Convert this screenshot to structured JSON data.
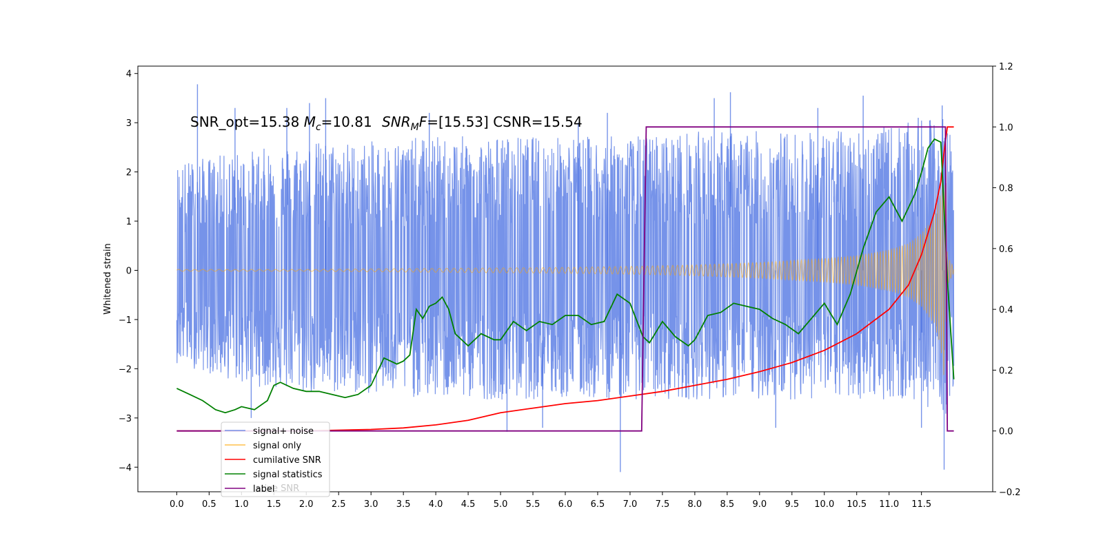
{
  "chart_data": {
    "type": "line",
    "annotation": {
      "snr_opt": "SNR_opt=15.38",
      "mc_symbol": "M",
      "mc_subscript": "c",
      "mc_value": "=10.81",
      "snrmf_symbol": "SNR",
      "snrmf_subscript": "M",
      "snrmf_tail": "F",
      "snrmf_value": "=[15.53]",
      "csnr": "CSNR=15.54"
    },
    "ylabel_left": "Whitened strain",
    "xlabel": "",
    "x_range": [
      -0.6,
      12.6
    ],
    "x_ticks": [
      0.0,
      0.5,
      1.0,
      1.5,
      2.0,
      2.5,
      3.0,
      3.5,
      4.0,
      4.5,
      5.0,
      5.5,
      6.0,
      6.5,
      7.0,
      7.5,
      8.0,
      8.5,
      9.0,
      9.5,
      10.0,
      10.5,
      11.0,
      11.5
    ],
    "x_tick_labels": [
      "0.0",
      "0.5",
      "1.0",
      "1.5",
      "2.0",
      "2.5",
      "3.0",
      "3.5",
      "4.0",
      "4.5",
      "5.0",
      "5.5",
      "6.0",
      "6.5",
      "7.0",
      "7.5",
      "8.0",
      "8.5",
      "9.0",
      "9.5",
      "10.0",
      "10.5",
      "11.0",
      "11.5"
    ],
    "y_left_range": [
      -4.5,
      4.15
    ],
    "y_left_ticks": [
      -4,
      -3,
      -2,
      -1,
      0,
      1,
      2,
      3,
      4
    ],
    "y_left_tick_labels": [
      "−4",
      "−3",
      "−2",
      "−1",
      "0",
      "1",
      "2",
      "3",
      "4"
    ],
    "y_right_range": [
      -0.2,
      1.2
    ],
    "y_right_ticks": [
      -0.2,
      0.0,
      0.2,
      0.4,
      0.6,
      0.8,
      1.0,
      1.2
    ],
    "y_right_tick_labels": [
      "−0.2",
      "0.0",
      "0.2",
      "0.4",
      "0.6",
      "0.8",
      "1.0",
      "1.2"
    ],
    "legend_placement": "lower-left",
    "legend": [
      {
        "label": "signal+ noise",
        "color": "#4169e1"
      },
      {
        "label": "signal only",
        "color": "#ffa500"
      },
      {
        "label": "cumilative SNR",
        "color": "#ff0000"
      },
      {
        "label": "signal statistics",
        "color": "#008000"
      },
      {
        "label": "label",
        "color": "#800080"
      }
    ],
    "legend_ghost_text": "lative SNR",
    "series": [
      {
        "name": "signal+ noise",
        "axis": "left",
        "color": "#4169e1",
        "noise_envelope": {
          "x": [
            0.0,
            1.0,
            2.0,
            3.0,
            4.0,
            5.0,
            6.0,
            7.0,
            8.0,
            9.0,
            10.0,
            11.0,
            11.5,
            11.9,
            12.0
          ],
          "upper": [
            2.1,
            2.3,
            2.5,
            2.5,
            2.6,
            2.6,
            2.6,
            2.6,
            2.7,
            2.7,
            2.7,
            2.8,
            2.9,
            3.0,
            2.3
          ],
          "lower": [
            -1.8,
            -2.2,
            -2.4,
            -2.4,
            -2.5,
            -2.5,
            -2.5,
            -2.5,
            -2.5,
            -2.5,
            -2.5,
            -2.5,
            -2.6,
            -2.8,
            -2.3
          ]
        },
        "spikes": [
          {
            "x": 0.32,
            "y": 3.78
          },
          {
            "x": 0.9,
            "y": 3.3
          },
          {
            "x": 1.7,
            "y": 3.3
          },
          {
            "x": 2.05,
            "y": 3.4
          },
          {
            "x": 2.3,
            "y": 3.5
          },
          {
            "x": 3.9,
            "y": 3.2
          },
          {
            "x": 6.2,
            "y": 3.0
          },
          {
            "x": 6.65,
            "y": 3.2
          },
          {
            "x": 8.3,
            "y": 3.5
          },
          {
            "x": 8.55,
            "y": 3.62
          },
          {
            "x": 9.9,
            "y": 3.3
          },
          {
            "x": 10.6,
            "y": 3.55
          },
          {
            "x": 11.45,
            "y": 3.1
          },
          {
            "x": 11.82,
            "y": 3.35
          },
          {
            "x": 1.15,
            "y": -3.0
          },
          {
            "x": 5.1,
            "y": -3.28
          },
          {
            "x": 5.65,
            "y": -3.2
          },
          {
            "x": 6.85,
            "y": -4.1
          },
          {
            "x": 9.25,
            "y": -3.2
          },
          {
            "x": 11.5,
            "y": -3.2
          },
          {
            "x": 11.85,
            "y": -4.05
          }
        ]
      },
      {
        "name": "signal only",
        "axis": "left",
        "color": "#ffa500",
        "envelope": {
          "x": [
            0.0,
            2.0,
            4.0,
            6.0,
            7.0,
            8.0,
            9.0,
            10.0,
            10.5,
            11.0,
            11.3,
            11.5,
            11.7,
            11.8,
            11.85,
            11.9,
            12.0
          ],
          "amp": [
            0.02,
            0.02,
            0.04,
            0.06,
            0.08,
            0.11,
            0.16,
            0.24,
            0.3,
            0.42,
            0.55,
            0.75,
            1.1,
            1.6,
            2.2,
            0.3,
            0.05
          ]
        }
      },
      {
        "name": "cumilative SNR",
        "axis": "right",
        "color": "#ff0000",
        "x": [
          0.0,
          2.0,
          3.0,
          3.5,
          4.0,
          4.5,
          5.0,
          5.5,
          6.0,
          6.5,
          7.0,
          7.5,
          8.0,
          8.5,
          9.0,
          9.5,
          10.0,
          10.5,
          11.0,
          11.3,
          11.5,
          11.7,
          11.8,
          11.85,
          11.9,
          12.0
        ],
        "y": [
          0.0,
          0.0,
          0.005,
          0.01,
          0.02,
          0.035,
          0.06,
          0.075,
          0.09,
          0.1,
          0.115,
          0.13,
          0.15,
          0.17,
          0.195,
          0.225,
          0.265,
          0.32,
          0.4,
          0.48,
          0.58,
          0.72,
          0.82,
          0.92,
          1.0,
          1.0
        ]
      },
      {
        "name": "signal statistics",
        "axis": "right",
        "color": "#008000",
        "x": [
          0.0,
          0.2,
          0.4,
          0.5,
          0.6,
          0.75,
          0.9,
          1.0,
          1.2,
          1.4,
          1.5,
          1.6,
          1.8,
          2.0,
          2.2,
          2.4,
          2.6,
          2.8,
          3.0,
          3.2,
          3.4,
          3.5,
          3.6,
          3.7,
          3.8,
          3.9,
          4.0,
          4.1,
          4.2,
          4.3,
          4.5,
          4.7,
          4.9,
          5.0,
          5.2,
          5.4,
          5.6,
          5.8,
          6.0,
          6.2,
          6.4,
          6.6,
          6.8,
          7.0,
          7.2,
          7.3,
          7.5,
          7.7,
          7.9,
          8.0,
          8.2,
          8.4,
          8.6,
          8.8,
          9.0,
          9.2,
          9.4,
          9.6,
          9.8,
          10.0,
          10.2,
          10.4,
          10.6,
          10.8,
          11.0,
          11.2,
          11.4,
          11.5,
          11.6,
          11.7,
          11.8,
          11.9,
          12.0
        ],
        "y": [
          0.14,
          0.12,
          0.1,
          0.085,
          0.07,
          0.06,
          0.07,
          0.08,
          0.07,
          0.1,
          0.15,
          0.16,
          0.14,
          0.13,
          0.13,
          0.12,
          0.11,
          0.12,
          0.15,
          0.24,
          0.22,
          0.23,
          0.25,
          0.4,
          0.37,
          0.41,
          0.42,
          0.44,
          0.4,
          0.32,
          0.28,
          0.32,
          0.3,
          0.3,
          0.36,
          0.33,
          0.36,
          0.35,
          0.38,
          0.38,
          0.35,
          0.36,
          0.45,
          0.42,
          0.31,
          0.29,
          0.36,
          0.31,
          0.28,
          0.3,
          0.38,
          0.39,
          0.42,
          0.41,
          0.4,
          0.37,
          0.35,
          0.32,
          0.37,
          0.42,
          0.35,
          0.45,
          0.6,
          0.72,
          0.77,
          0.69,
          0.78,
          0.85,
          0.93,
          0.96,
          0.95,
          0.5,
          0.17
        ]
      },
      {
        "name": "label",
        "axis": "right",
        "color": "#800080",
        "x": [
          0.0,
          7.18,
          7.18,
          7.25,
          11.87,
          11.9,
          12.0
        ],
        "y": [
          0.0,
          0.0,
          0.0,
          1.0,
          1.0,
          0.0,
          0.0
        ]
      }
    ]
  }
}
